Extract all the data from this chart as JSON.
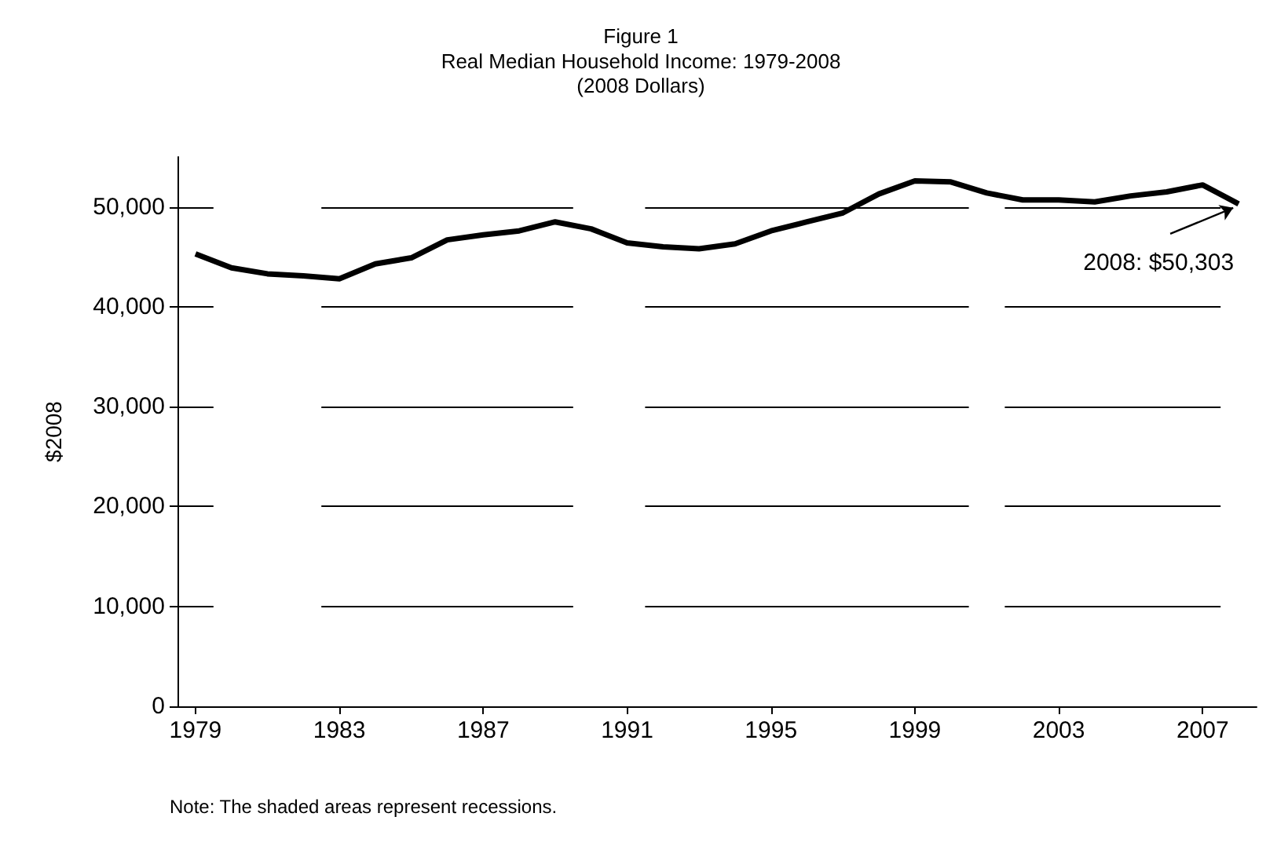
{
  "chart_data": {
    "type": "line",
    "title": "Figure 1\nReal Median Household Income: 1979-2008",
    "subtitle": "(2008 Dollars)",
    "ylabel": "$2008",
    "x": [
      1979,
      1980,
      1981,
      1982,
      1983,
      1984,
      1985,
      1986,
      1987,
      1988,
      1989,
      1990,
      1991,
      1992,
      1993,
      1994,
      1995,
      1996,
      1997,
      1998,
      1999,
      2000,
      2001,
      2002,
      2003,
      2004,
      2005,
      2006,
      2007,
      2008
    ],
    "series": [
      {
        "color": "#000000",
        "values": [
          45300,
          43900,
          43300,
          43100,
          42800,
          44300,
          44900,
          46700,
          47200,
          47600,
          48500,
          47800,
          46400,
          46000,
          45800,
          46300,
          47600,
          48500,
          49400,
          51300,
          52600,
          52500,
          51400,
          50700,
          50700,
          50500,
          51100,
          51500,
          52200,
          50303
        ]
      }
    ],
    "xlim": [
      1978.5,
      2008.5
    ],
    "xticks": [
      1979,
      1983,
      1987,
      1991,
      1995,
      1999,
      2003,
      2007
    ],
    "ylim": [
      0,
      55000
    ],
    "yticks": [
      {
        "value": 0,
        "label": "0"
      },
      {
        "value": 10000,
        "label": "10,000"
      },
      {
        "value": 20000,
        "label": "20,000"
      },
      {
        "value": 30000,
        "label": "30,000"
      },
      {
        "value": 40000,
        "label": "40,000"
      },
      {
        "value": 50000,
        "label": "50,000"
      }
    ],
    "bands": [
      {
        "axis": "x",
        "from": 1979.5,
        "to": 1982.5,
        "color": "#ffffff"
      },
      {
        "axis": "x",
        "from": 1989.5,
        "to": 1991.5,
        "color": "#ffffff"
      },
      {
        "axis": "x",
        "from": 2000.5,
        "to": 2001.5,
        "color": "#ffffff"
      },
      {
        "axis": "x",
        "from": 2007.5,
        "to": 2008.5,
        "color": "#ffffff"
      }
    ],
    "annotations": [
      {
        "text": "2008: $50,303",
        "x": 2008,
        "y": 50303
      },
      "Note: The shaded areas represent recessions."
    ],
    "grid": "y",
    "marker": "none",
    "line_style": "solid"
  }
}
